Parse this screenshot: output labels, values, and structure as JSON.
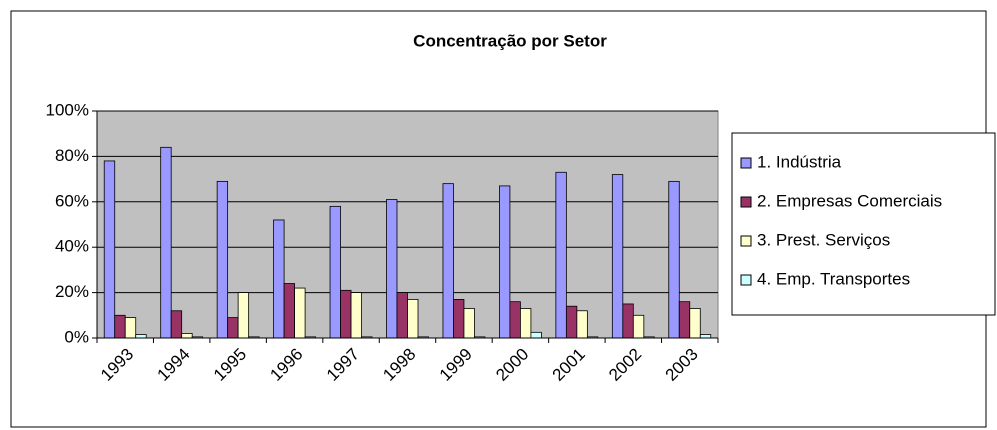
{
  "chart_data": {
    "type": "bar",
    "title": "Concentração por Setor",
    "categories": [
      "1993",
      "1994",
      "1995",
      "1996",
      "1997",
      "1998",
      "1999",
      "2000",
      "2001",
      "2002",
      "2003"
    ],
    "series": [
      {
        "name": "1. Indústria",
        "color": "#9999ff",
        "values": [
          78,
          84,
          69,
          52,
          58,
          61,
          68,
          67,
          73,
          72,
          69
        ]
      },
      {
        "name": "2. Empresas Comerciais",
        "color": "#993366",
        "values": [
          10,
          12,
          9,
          24,
          21,
          20,
          17,
          16,
          14,
          15,
          16
        ]
      },
      {
        "name": "3. Prest. Serviços",
        "color": "#ffffcc",
        "values": [
          9,
          2,
          20,
          22,
          20,
          17,
          13,
          13,
          12,
          10,
          13
        ]
      },
      {
        "name": "4. Emp. Transportes",
        "color": "#ccffff",
        "values": [
          1.5,
          0.5,
          0.5,
          0.5,
          0.5,
          0.5,
          0.5,
          2.5,
          0.5,
          0.5,
          1.5
        ]
      }
    ],
    "ylim": [
      0,
      100
    ],
    "yticks": [
      {
        "value": 0,
        "label": "0%"
      },
      {
        "value": 20,
        "label": "20%"
      },
      {
        "value": 40,
        "label": "40%"
      },
      {
        "value": 60,
        "label": "60%"
      },
      {
        "value": 80,
        "label": "80%"
      },
      {
        "value": 100,
        "label": "100%"
      }
    ],
    "grid": true,
    "legend": "right"
  }
}
